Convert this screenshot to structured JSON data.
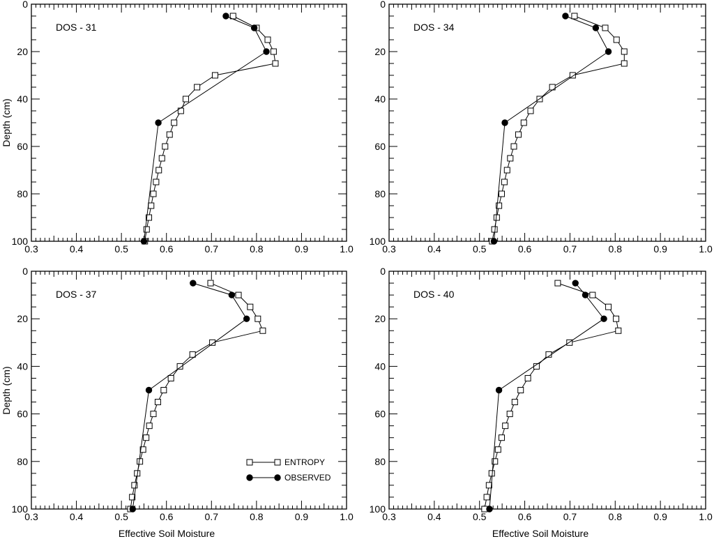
{
  "figure": {
    "x_axis_title": "Effective Soil Moisture",
    "y_axis_title": "Depth (cm)"
  },
  "legend": {
    "entries": [
      {
        "name": "ENTROPY",
        "marker": "open-square"
      },
      {
        "name": "OBSERVED",
        "marker": "filled-circle"
      }
    ]
  },
  "colors": {
    "line": "#000000",
    "open_marker_fill": "#ffffff",
    "filled_marker_fill": "#000000"
  },
  "chart_data": [
    {
      "type": "line",
      "panel_label": "DOS - 31",
      "xlim": [
        0.3,
        1.0
      ],
      "ylim": [
        0,
        100
      ],
      "y_inverted": true,
      "xticks": [
        "0.3",
        "0.4",
        "0.5",
        "0.6",
        "0.7",
        "0.8",
        "0.9",
        "1.0"
      ],
      "yticks": [
        "0",
        "20",
        "40",
        "60",
        "80",
        "100"
      ],
      "series": [
        {
          "name": "ENTROPY",
          "points": [
            [
              0.748,
              5
            ],
            [
              0.8,
              10
            ],
            [
              0.825,
              15
            ],
            [
              0.838,
              20
            ],
            [
              0.842,
              25
            ],
            [
              0.708,
              30
            ],
            [
              0.668,
              35
            ],
            [
              0.643,
              40
            ],
            [
              0.632,
              45
            ],
            [
              0.617,
              50
            ],
            [
              0.607,
              55
            ],
            [
              0.597,
              60
            ],
            [
              0.59,
              65
            ],
            [
              0.583,
              70
            ],
            [
              0.577,
              75
            ],
            [
              0.571,
              80
            ],
            [
              0.566,
              85
            ],
            [
              0.561,
              90
            ],
            [
              0.556,
              95
            ],
            [
              0.552,
              100
            ]
          ]
        },
        {
          "name": "OBSERVED",
          "points": [
            [
              0.732,
              5
            ],
            [
              0.795,
              10
            ],
            [
              0.822,
              20
            ],
            [
              0.582,
              50
            ],
            [
              0.55,
              100
            ]
          ]
        }
      ]
    },
    {
      "type": "line",
      "panel_label": "DOS - 34",
      "xlim": [
        0.3,
        1.0
      ],
      "ylim": [
        0,
        100
      ],
      "y_inverted": true,
      "xticks": [
        "0.3",
        "0.4",
        "0.5",
        "0.6",
        "0.7",
        "0.8",
        "0.9",
        "1.0"
      ],
      "yticks": [
        "0",
        "20",
        "40",
        "60",
        "80",
        "100"
      ],
      "series": [
        {
          "name": "ENTROPY",
          "points": [
            [
              0.71,
              5
            ],
            [
              0.778,
              10
            ],
            [
              0.803,
              15
            ],
            [
              0.82,
              20
            ],
            [
              0.82,
              25
            ],
            [
              0.706,
              30
            ],
            [
              0.661,
              35
            ],
            [
              0.633,
              40
            ],
            [
              0.613,
              45
            ],
            [
              0.598,
              50
            ],
            [
              0.586,
              55
            ],
            [
              0.576,
              60
            ],
            [
              0.568,
              65
            ],
            [
              0.561,
              70
            ],
            [
              0.555,
              75
            ],
            [
              0.549,
              80
            ],
            [
              0.543,
              85
            ],
            [
              0.538,
              90
            ],
            [
              0.533,
              95
            ],
            [
              0.528,
              100
            ]
          ]
        },
        {
          "name": "OBSERVED",
          "points": [
            [
              0.69,
              5
            ],
            [
              0.757,
              10
            ],
            [
              0.785,
              20
            ],
            [
              0.556,
              50
            ],
            [
              0.532,
              100
            ]
          ]
        }
      ]
    },
    {
      "type": "line",
      "panel_label": "DOS - 37",
      "xlim": [
        0.3,
        1.0
      ],
      "ylim": [
        0,
        100
      ],
      "y_inverted": true,
      "xticks": [
        "0.3",
        "0.4",
        "0.5",
        "0.6",
        "0.7",
        "0.8",
        "0.9",
        "1.0"
      ],
      "yticks": [
        "0",
        "20",
        "40",
        "60",
        "80",
        "100"
      ],
      "series": [
        {
          "name": "ENTROPY",
          "points": [
            [
              0.698,
              5
            ],
            [
              0.76,
              10
            ],
            [
              0.786,
              15
            ],
            [
              0.803,
              20
            ],
            [
              0.814,
              25
            ],
            [
              0.702,
              30
            ],
            [
              0.658,
              35
            ],
            [
              0.63,
              40
            ],
            [
              0.61,
              45
            ],
            [
              0.594,
              50
            ],
            [
              0.581,
              55
            ],
            [
              0.571,
              60
            ],
            [
              0.562,
              65
            ],
            [
              0.555,
              70
            ],
            [
              0.548,
              75
            ],
            [
              0.541,
              80
            ],
            [
              0.535,
              85
            ],
            [
              0.529,
              90
            ],
            [
              0.524,
              95
            ],
            [
              0.52,
              100
            ]
          ]
        },
        {
          "name": "OBSERVED",
          "points": [
            [
              0.659,
              5
            ],
            [
              0.745,
              10
            ],
            [
              0.778,
              20
            ],
            [
              0.561,
              50
            ],
            [
              0.525,
              100
            ]
          ]
        }
      ]
    },
    {
      "type": "line",
      "panel_label": "DOS - 40",
      "xlim": [
        0.3,
        1.0
      ],
      "ylim": [
        0,
        100
      ],
      "y_inverted": true,
      "xticks": [
        "0.3",
        "0.4",
        "0.5",
        "0.6",
        "0.7",
        "0.8",
        "0.9",
        "1.0"
      ],
      "yticks": [
        "0",
        "20",
        "40",
        "60",
        "80",
        "100"
      ],
      "series": [
        {
          "name": "ENTROPY",
          "points": [
            [
              0.673,
              5
            ],
            [
              0.75,
              10
            ],
            [
              0.785,
              15
            ],
            [
              0.802,
              20
            ],
            [
              0.807,
              25
            ],
            [
              0.699,
              30
            ],
            [
              0.653,
              35
            ],
            [
              0.626,
              40
            ],
            [
              0.607,
              45
            ],
            [
              0.591,
              50
            ],
            [
              0.578,
              55
            ],
            [
              0.567,
              60
            ],
            [
              0.557,
              65
            ],
            [
              0.549,
              70
            ],
            [
              0.541,
              75
            ],
            [
              0.534,
              80
            ],
            [
              0.527,
              85
            ],
            [
              0.521,
              90
            ],
            [
              0.516,
              95
            ],
            [
              0.511,
              100
            ]
          ]
        },
        {
          "name": "OBSERVED",
          "points": [
            [
              0.712,
              5
            ],
            [
              0.734,
              10
            ],
            [
              0.775,
              20
            ],
            [
              0.543,
              50
            ],
            [
              0.522,
              100
            ]
          ]
        }
      ]
    }
  ]
}
